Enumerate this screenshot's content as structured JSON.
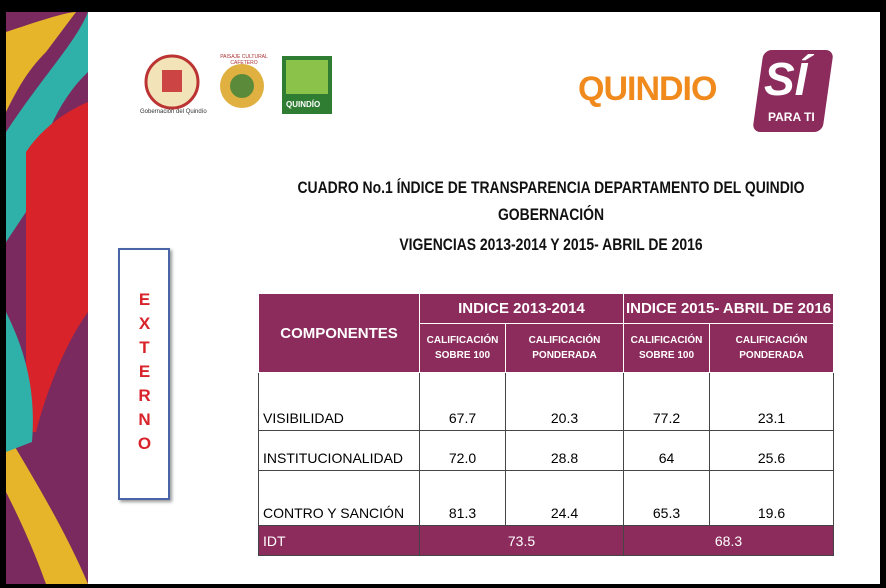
{
  "header": {
    "logos": [
      "Gobernación del Quindío",
      "PAISAJE CULTURAL CAFETERO",
      "QUINDÍO"
    ],
    "brand": {
      "name": "QUINDIO",
      "accent": "SÍ",
      "tagline": "PARA TI"
    }
  },
  "title": {
    "lines": [
      "CUADRO  No.1  ÍNDICE DE TRANSPARENCIA DEPARTAMENTO DEL QUINDIO",
      "GOBERNACIÓN",
      "VIGENCIAS 2013-2014  Y 2015- ABRIL DE 2016"
    ]
  },
  "side_label": "EXTERNO",
  "table": {
    "component_header": "COMPONENTES",
    "group_headers": [
      "INDICE 2013-2014",
      "INDICE 2015- ABRIL  DE 2016"
    ],
    "sub_headers": [
      [
        "CALIFICACIÓN",
        "SOBRE 100"
      ],
      [
        "CALIFICACIÓN",
        "PONDERADA"
      ],
      [
        "CALIFICACIÓN",
        "SOBRE 100"
      ],
      [
        "CALIFICACIÓN",
        "PONDERADA"
      ]
    ],
    "rows": [
      [
        "VISIBILIDAD",
        "67.7",
        "20.3",
        "77.2",
        "23.1"
      ],
      [
        "INSTITUCIONALIDAD",
        "72.0",
        "28.8",
        "64",
        "25.6"
      ],
      [
        "CONTRO Y SANCIÓN",
        "81.3",
        "24.4",
        "65.3",
        "19.6"
      ]
    ],
    "total": {
      "label": "IDT",
      "values": [
        "73.5",
        "68.3"
      ]
    }
  }
}
